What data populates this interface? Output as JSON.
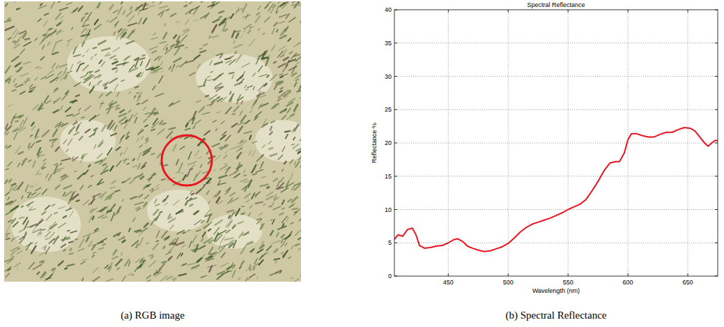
{
  "image": {
    "caption": "(a) RGB image"
  },
  "chart_data": {
    "type": "line",
    "title": "Spectral Reflectance",
    "caption": "(b) Spectral Reflectance",
    "x_label": "Wavelength (nm)",
    "y_label": "Reflectance %",
    "x": [
      405,
      408,
      412,
      416,
      420,
      423,
      426,
      430,
      435,
      440,
      445,
      450,
      455,
      458,
      462,
      466,
      470,
      475,
      480,
      485,
      490,
      495,
      500,
      505,
      510,
      515,
      520,
      525,
      530,
      535,
      540,
      545,
      550,
      555,
      560,
      565,
      570,
      575,
      580,
      585,
      590,
      593,
      597,
      600,
      603,
      607,
      612,
      617,
      622,
      627,
      632,
      637,
      642,
      647,
      652,
      656,
      660,
      664,
      667,
      670,
      673,
      675
    ],
    "values": [
      5.5,
      6.2,
      6.0,
      7.0,
      7.2,
      6.2,
      4.6,
      4.2,
      4.3,
      4.5,
      4.6,
      5.0,
      5.5,
      5.6,
      5.2,
      4.5,
      4.2,
      3.9,
      3.7,
      3.8,
      4.1,
      4.4,
      4.9,
      5.7,
      6.6,
      7.3,
      7.8,
      8.1,
      8.4,
      8.7,
      9.1,
      9.5,
      10.0,
      10.4,
      10.8,
      11.5,
      12.8,
      14.2,
      15.8,
      17.0,
      17.2,
      17.2,
      18.5,
      20.5,
      21.4,
      21.4,
      21.1,
      20.9,
      20.9,
      21.3,
      21.6,
      21.6,
      22.0,
      22.3,
      22.2,
      21.8,
      20.9,
      20.0,
      19.5,
      20.0,
      20.4,
      20.3
    ],
    "color": "#e8141e",
    "xlim": [
      405,
      675
    ],
    "xticks": [
      450,
      500,
      550,
      600,
      650
    ],
    "ylim": [
      0,
      40
    ],
    "yticks": [
      0,
      5,
      10,
      15,
      20,
      25,
      30,
      35,
      40
    ],
    "grid": true
  }
}
